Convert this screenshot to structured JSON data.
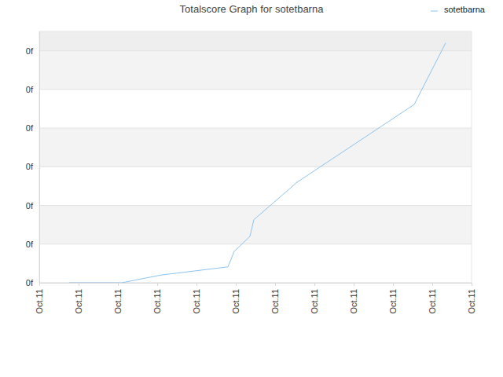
{
  "chart_data": {
    "type": "line",
    "title": "Totalscore Graph for sotetbarna",
    "x": [
      0.76,
      2.1,
      3.1,
      4.8,
      4.96,
      5.36,
      5.46,
      6.56,
      9.54,
      10.34
    ],
    "series": [
      {
        "name": "sotetbarna",
        "color": "#8cc3ee",
        "values": [
          0,
          0,
          0.2,
          0.41,
          0.81,
          1.2,
          1.63,
          2.6,
          4.61,
          6.2
        ]
      }
    ],
    "xlim": [
      0,
      11
    ],
    "xticks": [
      {
        "value": 0,
        "label": "Oct.11"
      },
      {
        "value": 1,
        "label": "Oct.11"
      },
      {
        "value": 2,
        "label": "Oct.11"
      },
      {
        "value": 3,
        "label": "Oct.11"
      },
      {
        "value": 4,
        "label": "Oct.11"
      },
      {
        "value": 5,
        "label": "Oct.11"
      },
      {
        "value": 6,
        "label": "Oct.11"
      },
      {
        "value": 7,
        "label": "Oct.11"
      },
      {
        "value": 8,
        "label": "Oct.11"
      },
      {
        "value": 9,
        "label": "Oct.11"
      },
      {
        "value": 10,
        "label": "Oct.11"
      },
      {
        "value": 11,
        "label": "Oct.11"
      }
    ],
    "ylim": [
      0,
      6.5
    ],
    "yticks": [
      {
        "value": 0,
        "label": "0f"
      },
      {
        "value": 1,
        "label": "0f"
      },
      {
        "value": 2,
        "label": "0f"
      },
      {
        "value": 3,
        "label": "0f"
      },
      {
        "value": 4,
        "label": "0f"
      },
      {
        "value": 5,
        "label": "0f"
      },
      {
        "value": 6,
        "label": "0f"
      }
    ],
    "grid": true,
    "legend": "top-right"
  }
}
